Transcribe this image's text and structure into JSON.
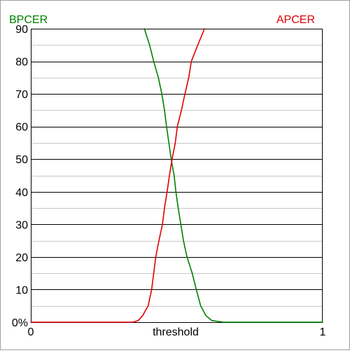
{
  "chart_data": {
    "type": "line",
    "xlabel": "threshold",
    "ylabel": "",
    "xlim": [
      0,
      1
    ],
    "ylim": [
      0,
      90
    ],
    "y_ticks": [
      {
        "value": 0,
        "label": "0%"
      },
      {
        "value": 10,
        "label": "10"
      },
      {
        "value": 20,
        "label": "20"
      },
      {
        "value": 30,
        "label": "30"
      },
      {
        "value": 40,
        "label": "40"
      },
      {
        "value": 50,
        "label": "50"
      },
      {
        "value": 60,
        "label": "60"
      },
      {
        "value": 70,
        "label": "70"
      },
      {
        "value": 80,
        "label": "80"
      },
      {
        "value": 90,
        "label": "90"
      }
    ],
    "y_minor_step": 5,
    "x_ticks": [
      {
        "value": 0,
        "label": "0"
      },
      {
        "value": 1,
        "label": "1"
      }
    ],
    "grid": true,
    "legend": "labels above the plot: BPCER top-left, APCER top-right",
    "series": [
      {
        "name": "BPCER",
        "color": "#008000",
        "points": [
          [
            0.389,
            90
          ],
          [
            0.407,
            85
          ],
          [
            0.421,
            80
          ],
          [
            0.437,
            75
          ],
          [
            0.449,
            70
          ],
          [
            0.458,
            65
          ],
          [
            0.465,
            60
          ],
          [
            0.473,
            55
          ],
          [
            0.481,
            50
          ],
          [
            0.491,
            45
          ],
          [
            0.497,
            40
          ],
          [
            0.505,
            35
          ],
          [
            0.514,
            30
          ],
          [
            0.523,
            25
          ],
          [
            0.535,
            20
          ],
          [
            0.553,
            15
          ],
          [
            0.567,
            10
          ],
          [
            0.582,
            5
          ],
          [
            0.6,
            2
          ],
          [
            0.62,
            0.5
          ],
          [
            0.66,
            0
          ],
          [
            1.0,
            0
          ]
        ]
      },
      {
        "name": "APCER",
        "color": "#e00000",
        "points": [
          [
            0.0,
            0
          ],
          [
            0.35,
            0
          ],
          [
            0.368,
            0.5
          ],
          [
            0.383,
            2
          ],
          [
            0.402,
            5
          ],
          [
            0.414,
            10
          ],
          [
            0.421,
            15
          ],
          [
            0.428,
            20
          ],
          [
            0.439,
            25
          ],
          [
            0.451,
            30
          ],
          [
            0.458,
            35
          ],
          [
            0.467,
            40
          ],
          [
            0.475,
            45
          ],
          [
            0.484,
            50
          ],
          [
            0.495,
            55
          ],
          [
            0.502,
            60
          ],
          [
            0.516,
            65
          ],
          [
            0.528,
            70
          ],
          [
            0.541,
            75
          ],
          [
            0.55,
            80
          ],
          [
            0.572,
            85
          ],
          [
            0.595,
            90
          ]
        ]
      }
    ]
  }
}
